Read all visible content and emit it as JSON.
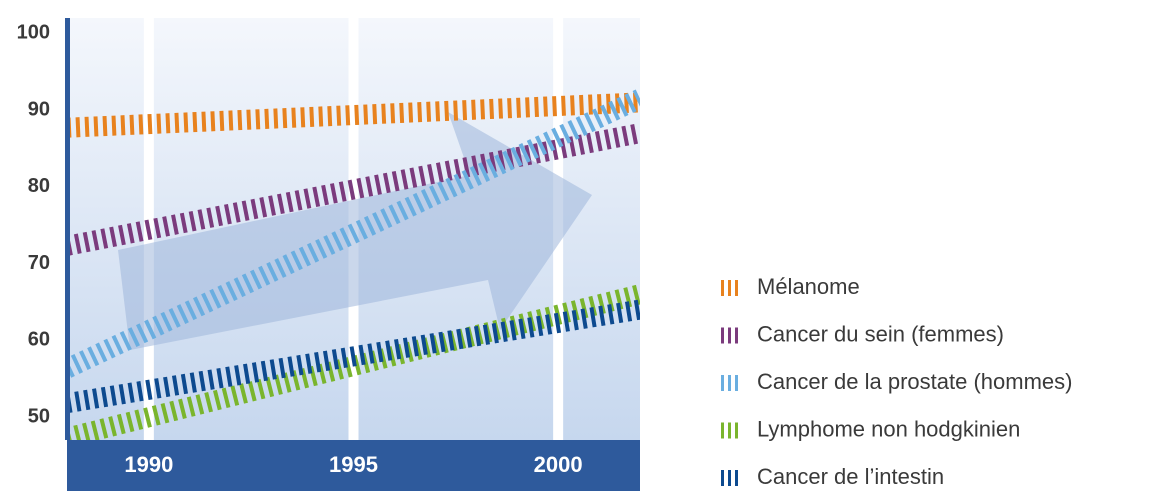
{
  "chart_data": {
    "type": "line",
    "x": [
      1988,
      2002
    ],
    "xlim": [
      1988,
      2002
    ],
    "xticks": [
      1990,
      1995,
      2000
    ],
    "ylim": [
      47,
      102
    ],
    "yticks": [
      50,
      60,
      70,
      80,
      90,
      100
    ],
    "grid": true,
    "legend": "right",
    "series": [
      {
        "name": "Mélanome",
        "color": "#e8821e",
        "values": [
          87.7,
          91
        ]
      },
      {
        "name": "Cancer du sein (femmes)",
        "color": "#7b3b7d",
        "values": [
          72.3,
          87
        ]
      },
      {
        "name": "Cancer de la prostate (hommes)",
        "color": "#6aaee0",
        "values": [
          56.3,
          91.5
        ]
      },
      {
        "name": "Lymphome non hodgkinien",
        "color": "#7ab52d",
        "values": [
          47.3,
          66
        ]
      },
      {
        "name": "Cancer de l’intestin",
        "color": "#0d4a8f",
        "values": [
          51.8,
          64
        ]
      }
    ]
  }
}
